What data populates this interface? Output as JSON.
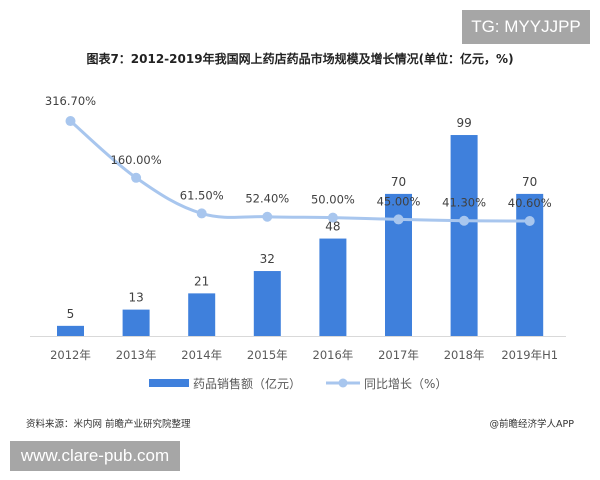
{
  "watermark_top": "TG: MYYJJPP",
  "watermark_bottom": "www.clare-pub.com",
  "source": "资料来源：米内网 前瞻产业研究院整理",
  "brand": "@前瞻经济学人APP",
  "chart_data": {
    "type": "bar+line",
    "title": "图表7：2012-2019年我国网上药店药品市场规模及增长情况(单位：亿元，%)",
    "categories": [
      "2012年",
      "2013年",
      "2014年",
      "2015年",
      "2016年",
      "2017年",
      "2018年",
      "2019年H1"
    ],
    "series": [
      {
        "name": "药品销售额（亿元）",
        "type": "bar",
        "color": "#3f80dc",
        "values": [
          5,
          13,
          21,
          32,
          48,
          70,
          99,
          70
        ],
        "labels": [
          "5",
          "13",
          "21",
          "32",
          "48",
          "70",
          "99",
          "70"
        ]
      },
      {
        "name": "同比增长（%）",
        "type": "line",
        "color": "#a8c6ee",
        "values": [
          316.7,
          160.0,
          61.5,
          52.4,
          50.0,
          45.0,
          41.3,
          40.6
        ],
        "labels": [
          "316.70%",
          "160.00%",
          "61.50%",
          "52.40%",
          "50.00%",
          "45.00%",
          "41.30%",
          "40.60%"
        ]
      }
    ],
    "legend": "bottom",
    "grid": false
  }
}
